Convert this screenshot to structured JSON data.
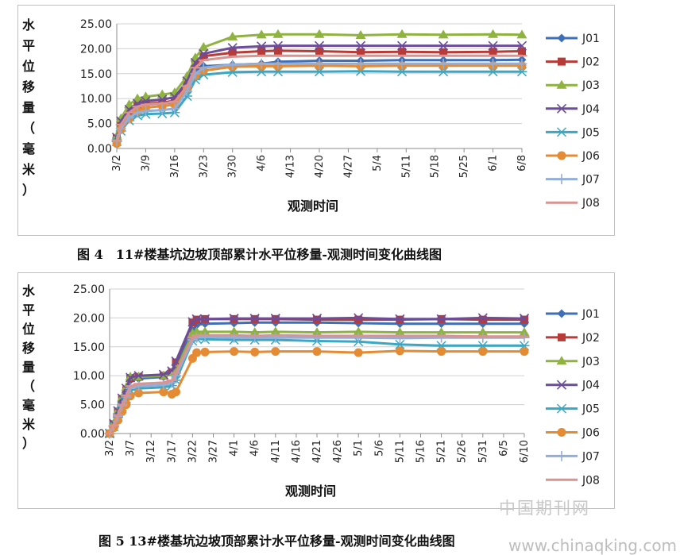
{
  "chart_data": [
    {
      "type": "line",
      "title": "",
      "ylabel": "水平位移量（毫米）",
      "xlabel": "观测时间",
      "ylim": [
        0,
        25
      ],
      "yticks": [
        "0.00",
        "5.00",
        "10.00",
        "15.00",
        "20.00",
        "25.00"
      ],
      "grid": true,
      "legend": "right",
      "categories": [
        "3/2",
        "3/3",
        "3/5",
        "3/7",
        "3/9",
        "3/13",
        "3/16",
        "3/19",
        "3/21",
        "3/23",
        "3/30",
        "4/6",
        "4/10",
        "4/20",
        "4/30",
        "5/10",
        "5/20",
        "6/1",
        "6/8"
      ],
      "xticks": [
        "3/2",
        "3/9",
        "3/16",
        "3/23",
        "3/30",
        "4/6",
        "4/13",
        "4/20",
        "4/27",
        "5/4",
        "5/11",
        "5/18",
        "5/25",
        "6/1",
        "6/8"
      ],
      "series": [
        {
          "name": "J01",
          "color": "#3f6fb6",
          "marker": "diamond",
          "values": [
            1.8,
            4.5,
            6.8,
            8.2,
            8.8,
            9.0,
            9.3,
            12.0,
            15.5,
            16.5,
            16.8,
            17.0,
            17.4,
            17.6,
            17.6,
            17.7,
            17.7,
            17.7,
            17.8
          ]
        },
        {
          "name": "J02",
          "color": "#b83b37",
          "marker": "square",
          "values": [
            2.0,
            5.2,
            7.5,
            8.6,
            9.0,
            9.2,
            9.6,
            13.0,
            16.8,
            18.5,
            19.2,
            19.5,
            19.6,
            19.5,
            19.3,
            19.4,
            19.3,
            19.4,
            19.5
          ]
        },
        {
          "name": "J03",
          "color": "#8fb241",
          "marker": "triangle",
          "values": [
            2.5,
            6.0,
            8.8,
            10.0,
            10.4,
            10.8,
            11.2,
            14.5,
            18.2,
            20.3,
            22.4,
            22.8,
            22.9,
            22.9,
            22.7,
            22.9,
            22.8,
            22.9,
            22.8
          ]
        },
        {
          "name": "J04",
          "color": "#6b4d99",
          "marker": "x",
          "values": [
            2.2,
            5.5,
            7.8,
            9.0,
            9.5,
            9.8,
            10.3,
            13.5,
            17.2,
            19.0,
            20.2,
            20.5,
            20.6,
            20.6,
            20.6,
            20.6,
            20.6,
            20.6,
            20.6
          ]
        },
        {
          "name": "J05",
          "color": "#3aa7c4",
          "marker": "asterisk",
          "values": [
            1.4,
            3.5,
            5.6,
            6.6,
            6.9,
            7.0,
            7.2,
            10.5,
            13.8,
            14.8,
            15.3,
            15.4,
            15.4,
            15.4,
            15.5,
            15.4,
            15.4,
            15.4,
            15.4
          ]
        },
        {
          "name": "J06",
          "color": "#e58b34",
          "marker": "circle",
          "values": [
            1.0,
            3.8,
            6.0,
            7.5,
            8.2,
            8.5,
            8.8,
            12.0,
            14.6,
            15.6,
            16.4,
            16.5,
            16.5,
            16.6,
            16.5,
            16.6,
            16.6,
            16.6,
            16.6
          ]
        },
        {
          "name": "J07",
          "color": "#93aed8",
          "marker": "plus",
          "values": [
            1.5,
            4.0,
            6.2,
            7.2,
            7.5,
            7.7,
            8.0,
            11.5,
            15.0,
            16.2,
            16.8,
            17.0,
            17.0,
            17.0,
            17.0,
            17.0,
            17.0,
            17.0,
            17.0
          ]
        },
        {
          "name": "J08",
          "color": "#d99391",
          "marker": "dash",
          "values": [
            1.6,
            4.8,
            7.2,
            8.4,
            8.8,
            9.0,
            9.4,
            12.5,
            16.2,
            17.7,
            18.4,
            18.6,
            18.6,
            18.6,
            18.6,
            18.6,
            18.6,
            18.6,
            18.6
          ]
        }
      ]
    },
    {
      "type": "line",
      "title": "",
      "ylabel": "水平位移量（毫米）",
      "xlabel": "观测时间",
      "ylim": [
        0,
        25
      ],
      "yticks": [
        "0.00",
        "5.00",
        "10.00",
        "15.00",
        "20.00",
        "25.00"
      ],
      "grid": true,
      "legend": "right",
      "categories": [
        "3/2",
        "3/3",
        "3/4",
        "3/5",
        "3/6",
        "3/7",
        "3/9",
        "3/15",
        "3/17",
        "3/18",
        "3/22",
        "3/23",
        "3/25",
        "4/1",
        "4/6",
        "4/11",
        "4/21",
        "5/1",
        "5/11",
        "5/21",
        "5/31",
        "6/10"
      ],
      "xticks": [
        "3/2",
        "3/7",
        "3/12",
        "3/17",
        "3/22",
        "3/27",
        "4/1",
        "4/6",
        "4/11",
        "4/16",
        "4/21",
        "4/26",
        "5/1",
        "5/6",
        "5/11",
        "5/16",
        "5/21",
        "5/26",
        "5/31",
        "6/5",
        "6/10"
      ],
      "series": [
        {
          "name": "J01",
          "color": "#3f6fb6",
          "marker": "diamond",
          "values": [
            0.0,
            1.5,
            3.5,
            5.5,
            7.0,
            9.2,
            9.5,
            9.8,
            10.5,
            12.0,
            17.8,
            18.8,
            19.0,
            19.1,
            19.2,
            19.2,
            19.2,
            19.1,
            19.0,
            19.0,
            19.0,
            19.0
          ]
        },
        {
          "name": "J02",
          "color": "#b83b37",
          "marker": "square",
          "values": [
            0.0,
            1.6,
            3.8,
            6.0,
            7.5,
            9.6,
            9.8,
            10.0,
            10.6,
            12.3,
            19.2,
            19.7,
            19.8,
            19.8,
            19.8,
            19.8,
            19.7,
            19.7,
            19.7,
            19.8,
            19.7,
            19.7
          ]
        },
        {
          "name": "J03",
          "color": "#8fb241",
          "marker": "triangle",
          "values": [
            0.0,
            1.8,
            4.0,
            6.2,
            8.0,
            9.8,
            9.8,
            10.0,
            10.5,
            11.0,
            17.3,
            17.6,
            17.6,
            17.6,
            17.5,
            17.6,
            17.5,
            17.6,
            17.5,
            17.5,
            17.5,
            17.5
          ]
        },
        {
          "name": "J04",
          "color": "#6b4d99",
          "marker": "x",
          "values": [
            0.0,
            1.7,
            3.9,
            6.1,
            7.8,
            9.7,
            10.0,
            10.2,
            10.8,
            12.5,
            19.3,
            19.8,
            19.8,
            19.9,
            19.9,
            19.9,
            19.9,
            20.0,
            19.8,
            19.8,
            20.0,
            19.9
          ]
        },
        {
          "name": "J05",
          "color": "#3aa7c4",
          "marker": "asterisk",
          "values": [
            0.0,
            1.2,
            2.8,
            4.6,
            6.0,
            7.5,
            7.8,
            8.0,
            8.3,
            9.2,
            16.0,
            16.4,
            16.3,
            16.2,
            16.2,
            16.2,
            16.0,
            15.9,
            15.4,
            15.2,
            15.2,
            15.2
          ]
        },
        {
          "name": "J06",
          "color": "#e58b34",
          "marker": "circle",
          "values": [
            0.0,
            1.0,
            2.3,
            3.8,
            5.0,
            6.5,
            7.0,
            7.2,
            6.8,
            7.2,
            13.0,
            14.0,
            14.1,
            14.2,
            14.1,
            14.2,
            14.2,
            14.0,
            14.3,
            14.2,
            14.2,
            14.2
          ]
        },
        {
          "name": "J07",
          "color": "#93aed8",
          "marker": "plus",
          "values": [
            0.0,
            1.3,
            3.0,
            4.8,
            6.3,
            7.8,
            8.2,
            8.4,
            8.8,
            10.0,
            16.2,
            16.6,
            16.7,
            16.6,
            16.6,
            16.6,
            16.6,
            16.6,
            16.5,
            16.6,
            16.6,
            16.6
          ]
        },
        {
          "name": "J08",
          "color": "#d99391",
          "marker": "dash",
          "values": [
            0.0,
            1.4,
            3.2,
            5.0,
            6.6,
            8.2,
            8.6,
            8.8,
            9.2,
            10.5,
            16.6,
            17.0,
            17.0,
            17.0,
            16.9,
            17.0,
            16.9,
            16.9,
            16.9,
            16.9,
            16.8,
            16.8
          ]
        }
      ]
    }
  ],
  "captions": {
    "fig4": "图 4　11#楼基坑边坡顶部累计水平位移量-观测时间变化曲线图",
    "fig5": "图 5  13#楼基坑边坡顶部累计水平位移量-观测时间变化曲线图"
  },
  "watermarks": {
    "cn": "中国期刊网",
    "url": "www.chinaqking.com"
  }
}
